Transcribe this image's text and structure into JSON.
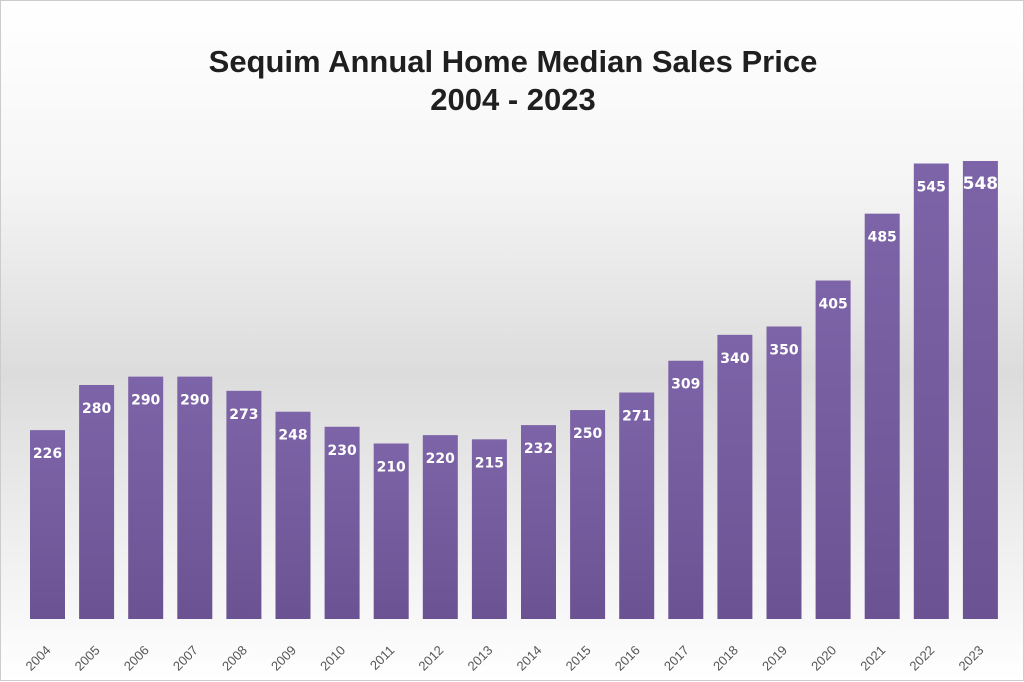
{
  "chart_data": {
    "type": "bar",
    "title": "Sequim Annual Home Median Sales Price",
    "subtitle": "2004 - 2023",
    "categories": [
      "2004",
      "2005",
      "2006",
      "2007",
      "2008",
      "2009",
      "2010",
      "2011",
      "2012",
      "2013",
      "2014",
      "2015",
      "2016",
      "2017",
      "2018",
      "2019",
      "2020",
      "2021",
      "2022",
      "2023"
    ],
    "values": [
      226,
      280,
      290,
      290,
      273,
      248,
      230,
      210,
      220,
      215,
      232,
      250,
      271,
      309,
      340,
      350,
      405,
      485,
      545,
      548
    ],
    "xlabel": "",
    "ylabel": "",
    "ylim": [
      0,
      548
    ],
    "grid": false,
    "data_labels": true,
    "bar_color": "#72599b",
    "label_color": "#ffffff"
  }
}
